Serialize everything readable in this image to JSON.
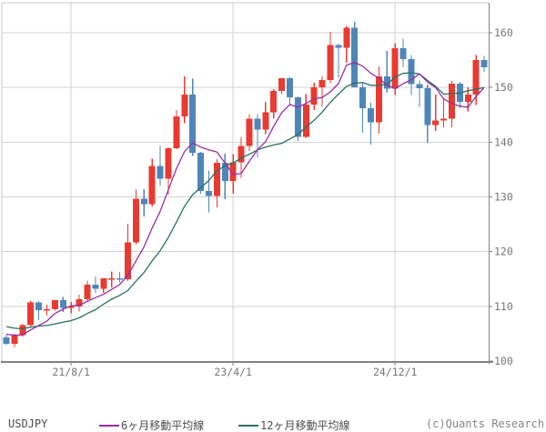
{
  "footer": {
    "symbol_label": "USDJPY",
    "copyright": "(c)Quants Research"
  },
  "chart_data": {
    "type": "candlestick",
    "title": "",
    "symbol": "USDJPY",
    "xlabel": "",
    "ylabel": "",
    "x_axis": {
      "tick_labels": [
        "21/8/1",
        "23/4/1",
        "24/12/1"
      ],
      "tick_indices": [
        8,
        28,
        48
      ]
    },
    "y_axis": {
      "ticks": [
        100,
        110,
        120,
        130,
        140,
        150,
        160
      ],
      "range": [
        100,
        165.5
      ]
    },
    "grid": true,
    "legend_position": "bottom",
    "colors": {
      "up": "#e73b31",
      "down": "#4e86b8",
      "ma6": "#9b2da2",
      "ma12": "#2a6f65",
      "grid": "#d2d2d2",
      "border": "#c8c8c8",
      "axis": "#828282",
      "tick_text": "#757575"
    },
    "candles": [
      {
        "d": "20/12",
        "o": 104.3,
        "h": 104.8,
        "l": 102.9,
        "c": 103.2
      },
      {
        "d": "21/1",
        "o": 103.2,
        "h": 105.0,
        "l": 102.6,
        "c": 104.7
      },
      {
        "d": "21/2",
        "o": 104.7,
        "h": 106.7,
        "l": 104.5,
        "c": 106.6
      },
      {
        "d": "21/3",
        "o": 106.6,
        "h": 111.0,
        "l": 106.4,
        "c": 110.7
      },
      {
        "d": "21/4",
        "o": 110.7,
        "h": 111.0,
        "l": 107.5,
        "c": 109.3
      },
      {
        "d": "21/5",
        "o": 109.3,
        "h": 110.3,
        "l": 108.3,
        "c": 109.5
      },
      {
        "d": "21/6",
        "o": 109.5,
        "h": 111.1,
        "l": 109.2,
        "c": 111.1
      },
      {
        "d": "21/7",
        "o": 111.1,
        "h": 111.7,
        "l": 109.0,
        "c": 109.7
      },
      {
        "d": "21/8",
        "o": 109.7,
        "h": 110.8,
        "l": 108.7,
        "c": 110.0
      },
      {
        "d": "21/9",
        "o": 110.0,
        "h": 112.1,
        "l": 109.1,
        "c": 111.3
      },
      {
        "d": "21/10",
        "o": 111.3,
        "h": 114.7,
        "l": 110.8,
        "c": 114.0
      },
      {
        "d": "21/11",
        "o": 114.0,
        "h": 115.5,
        "l": 112.5,
        "c": 113.2
      },
      {
        "d": "21/12",
        "o": 113.2,
        "h": 115.0,
        "l": 112.5,
        "c": 115.1
      },
      {
        "d": "22/1",
        "o": 115.1,
        "h": 116.4,
        "l": 113.5,
        "c": 115.1
      },
      {
        "d": "22/2",
        "o": 115.1,
        "h": 116.3,
        "l": 114.4,
        "c": 115.0
      },
      {
        "d": "22/3",
        "o": 115.0,
        "h": 125.1,
        "l": 114.6,
        "c": 121.7
      },
      {
        "d": "22/4",
        "o": 121.7,
        "h": 131.3,
        "l": 121.3,
        "c": 129.7
      },
      {
        "d": "22/5",
        "o": 129.7,
        "h": 131.4,
        "l": 126.4,
        "c": 128.7
      },
      {
        "d": "22/6",
        "o": 128.7,
        "h": 137.0,
        "l": 128.3,
        "c": 135.7
      },
      {
        "d": "22/7",
        "o": 135.7,
        "h": 139.4,
        "l": 132.0,
        "c": 133.3
      },
      {
        "d": "22/8",
        "o": 133.3,
        "h": 139.1,
        "l": 130.4,
        "c": 138.9
      },
      {
        "d": "22/9",
        "o": 138.9,
        "h": 145.9,
        "l": 138.7,
        "c": 144.7
      },
      {
        "d": "22/10",
        "o": 144.7,
        "h": 152.0,
        "l": 143.5,
        "c": 148.7
      },
      {
        "d": "22/11",
        "o": 148.7,
        "h": 151.6,
        "l": 137.5,
        "c": 138.1
      },
      {
        "d": "22/12",
        "o": 138.1,
        "h": 138.2,
        "l": 130.6,
        "c": 131.1
      },
      {
        "d": "23/1",
        "o": 131.1,
        "h": 134.8,
        "l": 127.2,
        "c": 130.2
      },
      {
        "d": "23/2",
        "o": 130.2,
        "h": 136.9,
        "l": 128.1,
        "c": 136.2
      },
      {
        "d": "23/3",
        "o": 136.2,
        "h": 137.9,
        "l": 129.6,
        "c": 132.9
      },
      {
        "d": "23/4",
        "o": 132.9,
        "h": 137.8,
        "l": 130.6,
        "c": 136.3
      },
      {
        "d": "23/5",
        "o": 136.3,
        "h": 140.9,
        "l": 133.5,
        "c": 139.3
      },
      {
        "d": "23/6",
        "o": 139.3,
        "h": 145.1,
        "l": 138.4,
        "c": 144.3
      },
      {
        "d": "23/7",
        "o": 144.3,
        "h": 145.1,
        "l": 137.2,
        "c": 142.3
      },
      {
        "d": "23/8",
        "o": 142.3,
        "h": 147.4,
        "l": 141.5,
        "c": 145.5
      },
      {
        "d": "23/9",
        "o": 145.5,
        "h": 149.7,
        "l": 144.4,
        "c": 149.4
      },
      {
        "d": "23/10",
        "o": 149.4,
        "h": 151.7,
        "l": 148.8,
        "c": 151.7
      },
      {
        "d": "23/11",
        "o": 151.7,
        "h": 151.9,
        "l": 146.7,
        "c": 148.2
      },
      {
        "d": "23/12",
        "o": 148.2,
        "h": 148.3,
        "l": 140.2,
        "c": 141.0
      },
      {
        "d": "24/1",
        "o": 141.0,
        "h": 148.8,
        "l": 140.8,
        "c": 146.9
      },
      {
        "d": "24/2",
        "o": 146.9,
        "h": 150.9,
        "l": 145.9,
        "c": 150.0
      },
      {
        "d": "24/3",
        "o": 150.0,
        "h": 152.0,
        "l": 146.5,
        "c": 151.4
      },
      {
        "d": "24/4",
        "o": 151.4,
        "h": 160.2,
        "l": 150.8,
        "c": 157.8
      },
      {
        "d": "24/5",
        "o": 157.8,
        "h": 158.0,
        "l": 151.9,
        "c": 157.3
      },
      {
        "d": "24/6",
        "o": 157.3,
        "h": 161.3,
        "l": 154.5,
        "c": 160.9
      },
      {
        "d": "24/7",
        "o": 160.9,
        "h": 162.0,
        "l": 151.9,
        "c": 150.0
      },
      {
        "d": "24/8",
        "o": 150.0,
        "h": 150.9,
        "l": 141.7,
        "c": 146.2
      },
      {
        "d": "24/9",
        "o": 146.2,
        "h": 147.2,
        "l": 139.6,
        "c": 143.6
      },
      {
        "d": "24/10",
        "o": 143.6,
        "h": 153.9,
        "l": 141.6,
        "c": 152.0
      },
      {
        "d": "24/11",
        "o": 152.0,
        "h": 156.7,
        "l": 149.1,
        "c": 149.8
      },
      {
        "d": "24/12",
        "o": 149.8,
        "h": 158.1,
        "l": 148.6,
        "c": 157.2
      },
      {
        "d": "25/1",
        "o": 157.2,
        "h": 158.9,
        "l": 153.7,
        "c": 155.2
      },
      {
        "d": "25/2",
        "o": 155.2,
        "h": 155.9,
        "l": 148.6,
        "c": 150.6
      },
      {
        "d": "25/3",
        "o": 150.6,
        "h": 151.3,
        "l": 146.5,
        "c": 149.9
      },
      {
        "d": "25/4",
        "o": 149.9,
        "h": 150.5,
        "l": 139.9,
        "c": 143.1
      },
      {
        "d": "25/5",
        "o": 143.1,
        "h": 148.7,
        "l": 142.1,
        "c": 144.0
      },
      {
        "d": "25/6",
        "o": 144.0,
        "h": 148.0,
        "l": 142.7,
        "c": 144.3
      },
      {
        "d": "25/7",
        "o": 144.3,
        "h": 151.2,
        "l": 142.7,
        "c": 150.7
      },
      {
        "d": "25/8",
        "o": 150.7,
        "h": 151.0,
        "l": 146.2,
        "c": 147.4
      },
      {
        "d": "25/9",
        "o": 147.4,
        "h": 150.0,
        "l": 145.6,
        "c": 148.7
      },
      {
        "d": "25/10",
        "o": 148.7,
        "h": 155.9,
        "l": 146.8,
        "c": 155.0
      },
      {
        "d": "25/11",
        "o": 155.0,
        "h": 155.8,
        "l": 152.9,
        "c": 153.7
      }
    ],
    "series": [
      {
        "name": "6ヶ月移動平均線",
        "color_key": "ma6",
        "values": [
          104.9,
          104.7,
          104.8,
          105.7,
          106.5,
          107.3,
          108.7,
          109.5,
          110.1,
          110.2,
          110.9,
          111.6,
          112.2,
          113.1,
          114.0,
          115.7,
          118.3,
          120.9,
          124.3,
          127.4,
          131.3,
          135.2,
          138.3,
          139.9,
          139.1,
          138.6,
          138.2,
          136.2,
          134.1,
          134.3,
          136.5,
          138.6,
          140.1,
          142.9,
          145.4,
          146.9,
          146.4,
          147.1,
          147.9,
          148.2,
          149.2,
          150.7,
          154.1,
          154.6,
          153.9,
          152.6,
          151.7,
          150.4,
          149.8,
          150.7,
          151.4,
          152.5,
          151.0,
          150.0,
          147.9,
          147.1,
          146.6,
          146.4,
          148.4,
          150.0
        ]
      },
      {
        "name": "12ヶ月移動平均線",
        "color_key": "ma12",
        "values": [
          106.3,
          106.0,
          105.9,
          106.2,
          106.4,
          106.5,
          106.8,
          107.1,
          107.4,
          107.9,
          108.7,
          109.4,
          110.4,
          111.3,
          112.0,
          112.9,
          114.6,
          116.2,
          118.3,
          120.2,
          122.6,
          125.4,
          128.3,
          130.4,
          131.7,
          133.0,
          134.8,
          135.7,
          136.2,
          137.1,
          137.8,
          138.6,
          139.1,
          139.5,
          139.8,
          140.6,
          141.4,
          142.8,
          144.0,
          145.5,
          147.3,
          148.8,
          150.2,
          150.8,
          150.9,
          150.4,
          150.4,
          150.6,
          151.9,
          152.6,
          152.7,
          152.5,
          151.3,
          150.2,
          148.8,
          148.9,
          149.0,
          149.4,
          149.7,
          150.0
        ]
      }
    ]
  }
}
